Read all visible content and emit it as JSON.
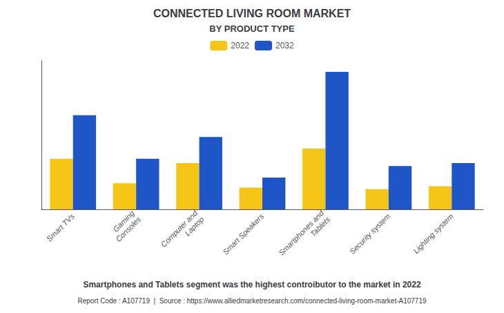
{
  "chart_data": {
    "type": "bar",
    "title": "CONNECTED LIVING ROOM MARKET",
    "subtitle": "BY PRODUCT TYPE",
    "categories": [
      "Smart TVs",
      "Gaming\nConsoles",
      "Computer and\nLaptop",
      "Smart Speakers",
      "Smartphones and\nTablets",
      "Security system",
      "Lighting system"
    ],
    "series": [
      {
        "name": "2022",
        "color": "#F5C518",
        "values": [
          3.5,
          1.8,
          3.2,
          1.5,
          4.2,
          1.4,
          1.6
        ]
      },
      {
        "name": "2032",
        "color": "#1E56C8",
        "values": [
          6.5,
          3.5,
          5.0,
          2.2,
          9.5,
          3.0,
          3.2
        ]
      }
    ],
    "ylim": [
      0,
      10.26
    ],
    "yticks": [],
    "grid": false,
    "legend": "top",
    "tick_labels": "x",
    "annotations": [
      "Smartphones and Tablets segment was the highest controibutor to the market in 2022",
      "Report Code : A107719  |  Source : https://www.alliedmarketresearch.com/connected-living-room-market-A107719"
    ]
  }
}
